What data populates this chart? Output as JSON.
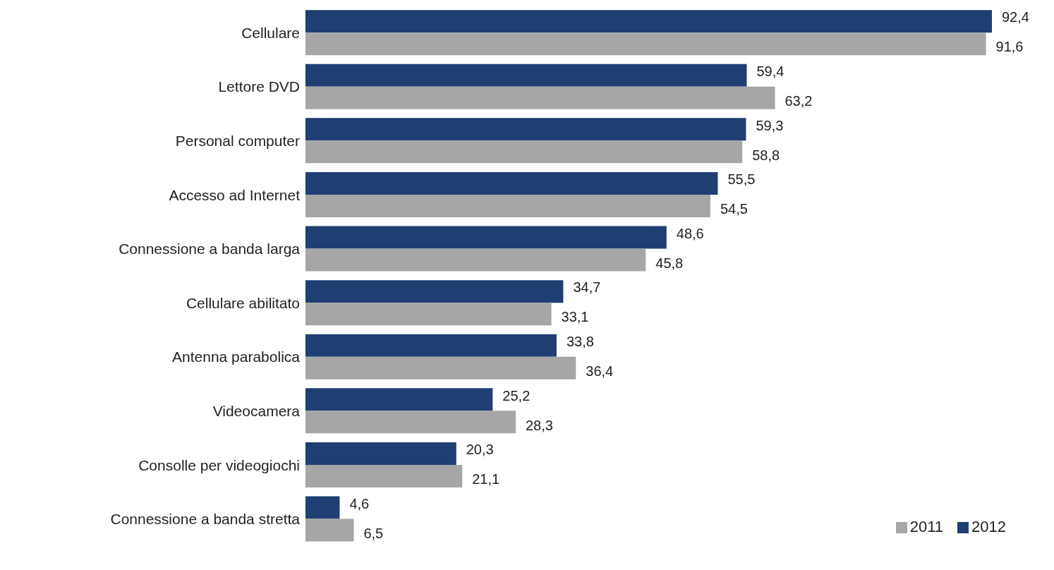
{
  "chart_data": {
    "type": "bar",
    "orientation": "horizontal",
    "categories": [
      "Cellulare",
      "Lettore DVD",
      "Personal computer",
      "Accesso ad Internet",
      "Connessione a banda larga",
      "Cellulare abilitato",
      "Antenna parabolica",
      "Videocamera",
      "Consolle per videogiochi",
      "Connessione a banda stretta"
    ],
    "series": [
      {
        "name": "2012",
        "color": "#1f3f73",
        "values": [
          92.4,
          59.4,
          59.3,
          55.5,
          48.6,
          34.7,
          33.8,
          25.2,
          20.3,
          4.6
        ],
        "value_labels": [
          "92,4",
          "59,4",
          "59,3",
          "55,5",
          "48,6",
          "34,7",
          "33,8",
          "25,2",
          "20,3",
          "4,6"
        ]
      },
      {
        "name": "2011",
        "color": "#a6a6a6",
        "values": [
          91.6,
          63.2,
          58.8,
          54.5,
          45.8,
          33.1,
          36.4,
          28.3,
          21.1,
          6.5
        ],
        "value_labels": [
          "91,6",
          "63,2",
          "58,8",
          "54,5",
          "45,8",
          "33,1",
          "36,4",
          "28,3",
          "21,1",
          "6,5"
        ]
      }
    ],
    "data_labels": true,
    "legend": "bottom right",
    "grid": false
  }
}
